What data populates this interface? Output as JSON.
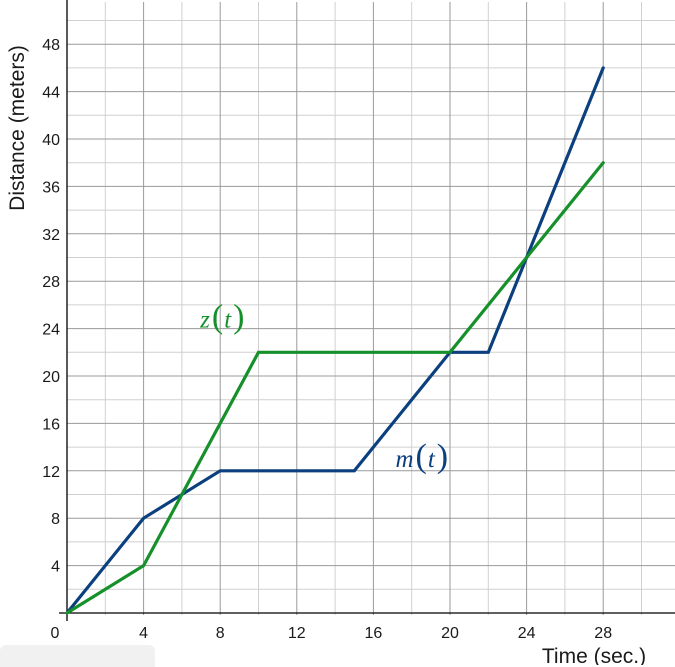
{
  "chart_data": {
    "type": "line",
    "xlabel": "Time (sec.)",
    "ylabel": "Distance (meters)",
    "xlim": [
      0,
      31
    ],
    "ylim": [
      0,
      51
    ],
    "x_ticks": [
      0,
      4,
      8,
      12,
      16,
      20,
      24,
      28
    ],
    "y_ticks": [
      4,
      8,
      12,
      16,
      20,
      24,
      28,
      32,
      36,
      40,
      44,
      48
    ],
    "minor_step": 2,
    "grid": true,
    "series": [
      {
        "name": "m(t)",
        "func": "m",
        "var": "t",
        "color": "#0b3f7e",
        "label_at": [
          17.1,
          12.3
        ],
        "x": [
          0,
          4,
          8,
          15,
          20,
          22,
          28
        ],
        "y": [
          0,
          8,
          12,
          12,
          22,
          22,
          46
        ]
      },
      {
        "name": "z(t)",
        "func": "z",
        "var": "t",
        "color": "#16902a",
        "label_at": [
          6.9,
          24.1
        ],
        "x": [
          0,
          4,
          10,
          20,
          28
        ],
        "y": [
          0,
          4,
          22,
          22,
          38
        ]
      }
    ]
  }
}
